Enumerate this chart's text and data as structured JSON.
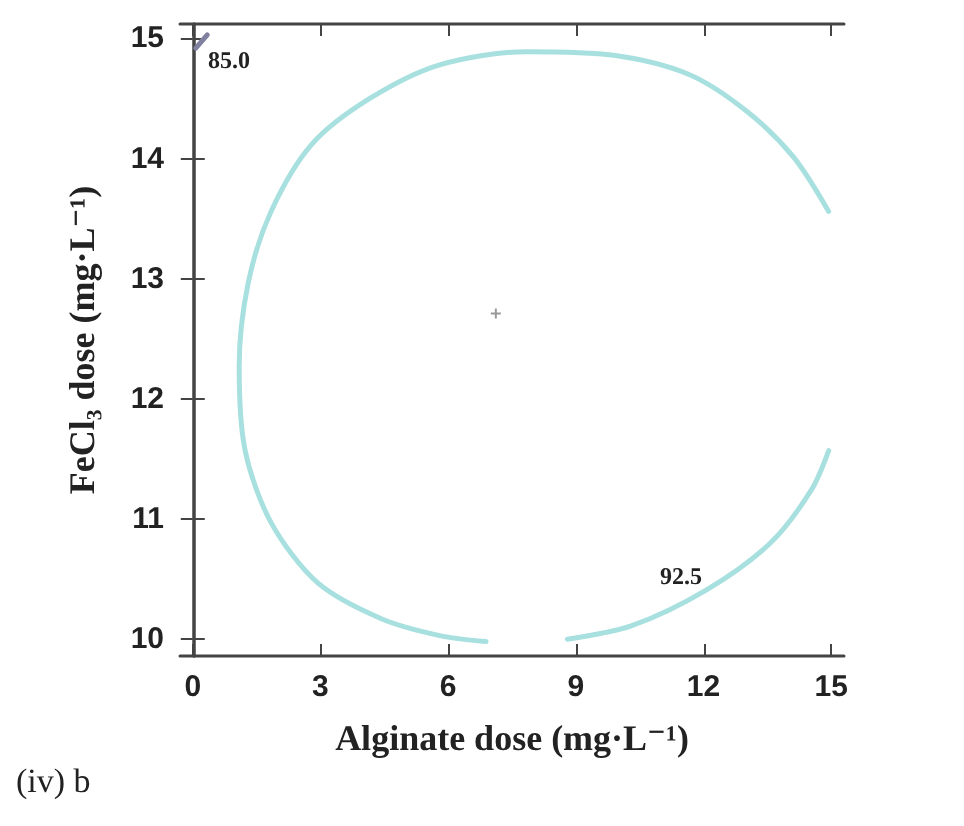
{
  "chart_data": {
    "type": "line",
    "xlabel": "Alginate dose (mg·L⁻¹)",
    "ylabel": "FeCl₃ dose (mg·L⁻¹)",
    "xlim": [
      -0.3,
      15.3
    ],
    "ylim": [
      9.86,
      15.12
    ],
    "xticks": [
      0,
      3,
      6,
      9,
      12,
      15
    ],
    "yticks": [
      10,
      11,
      12,
      13,
      14,
      15
    ],
    "grid": false,
    "marker": "none",
    "line_style": "solid",
    "series": [
      {
        "color": "#a8e0e0",
        "x": [
          14.94,
          14.12,
          13.03,
          11.66,
          9.89,
          7.84,
          5.8,
          4.16,
          2.8,
          1.84,
          1.3,
          1.09,
          1.23,
          1.84,
          2.93,
          4.43,
          5.8,
          6.89,
          null,
          8.8,
          10.3,
          12.07,
          13.57,
          14.53,
          14.94
        ],
        "values": [
          13.56,
          14.01,
          14.39,
          14.7,
          14.86,
          14.89,
          14.78,
          14.5,
          14.12,
          13.56,
          12.96,
          12.27,
          11.57,
          10.97,
          10.47,
          10.17,
          10.03,
          9.98,
          null,
          10.0,
          10.11,
          10.41,
          10.8,
          11.24,
          11.57
        ]
      },
      {
        "color": "#8080a0",
        "x": [
          0.07,
          0.34
        ],
        "values": [
          14.92,
          15.03
        ]
      },
      {
        "type": "scatter",
        "color": "#808080",
        "marker": "cross",
        "x": [
          7.12
        ],
        "values": [
          12.71
        ]
      }
    ],
    "annotations": [
      "85.0",
      "92.5",
      "(iv) b"
    ]
  }
}
